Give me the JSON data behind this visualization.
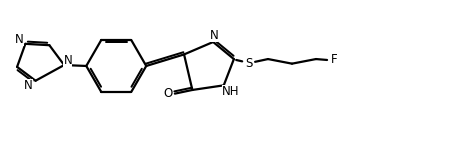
{
  "bg_color": "#ffffff",
  "line_color": "#000000",
  "line_width": 1.6,
  "font_size": 8.5,
  "font_size_small": 8.0,
  "xlim": [
    0,
    10
  ],
  "ylim": [
    0,
    3.3
  ]
}
